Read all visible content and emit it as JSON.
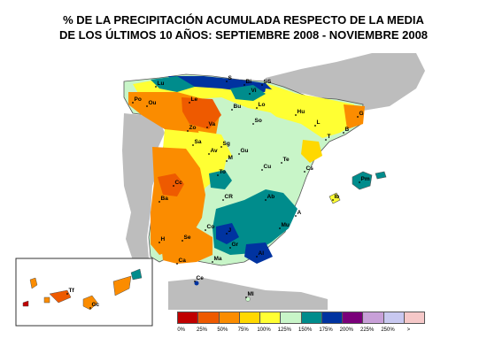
{
  "title": {
    "line1": "% DE LA PRECIPITACIÓN ACUMULADA RESPECTO DE LA MEDIA",
    "line2": "DE LOS  ÚLTIMOS 10  AÑOS: SEPTIEMBRE 2008 - NOVIEMBRE 2008"
  },
  "legend": {
    "colors": [
      "#c00000",
      "#ee5a00",
      "#fb8c00",
      "#ffd800",
      "#ffff33",
      "#c8f5c8",
      "#008c8c",
      "#0033a0",
      "#7a007a",
      "#c8a0d8",
      "#c8c8f0",
      "#f5c8c8"
    ],
    "ticks": [
      "0%",
      "25%",
      "50%",
      "75%",
      "100%",
      "125%",
      "150%",
      "175%",
      "200%",
      "225%",
      "250%",
      ">"
    ]
  },
  "colors": {
    "land_out": "#bdbdbd",
    "sea": "#ffffff",
    "border": "#555555"
  },
  "cities": [
    {
      "code": "S"
    },
    {
      "code": "Bi"
    },
    {
      "code": "SS"
    },
    {
      "code": "Vi"
    },
    {
      "code": "Lu"
    },
    {
      "code": "Po"
    },
    {
      "code": "Ou"
    },
    {
      "code": "Le"
    },
    {
      "code": "Bu"
    },
    {
      "code": "Lo"
    },
    {
      "code": "Hu"
    },
    {
      "code": "G"
    },
    {
      "code": "B"
    },
    {
      "code": "L"
    },
    {
      "code": "T"
    },
    {
      "code": "So"
    },
    {
      "code": "Zo"
    },
    {
      "code": "Va"
    },
    {
      "code": "Sa"
    },
    {
      "code": "Sg"
    },
    {
      "code": "Av"
    },
    {
      "code": "Gu"
    },
    {
      "code": "M"
    },
    {
      "code": "Cu"
    },
    {
      "code": "Te"
    },
    {
      "code": "Cs"
    },
    {
      "code": "Cc"
    },
    {
      "code": "To"
    },
    {
      "code": "CR"
    },
    {
      "code": "Ab"
    },
    {
      "code": "Ba"
    },
    {
      "code": "Co"
    },
    {
      "code": "J"
    },
    {
      "code": "Mu"
    },
    {
      "code": "A"
    },
    {
      "code": "H"
    },
    {
      "code": "Se"
    },
    {
      "code": "Gr"
    },
    {
      "code": "Ma"
    },
    {
      "code": "Al"
    },
    {
      "code": "Ca"
    },
    {
      "code": "Ce"
    },
    {
      "code": "Ml"
    },
    {
      "code": "Ib"
    },
    {
      "code": "Pm"
    },
    {
      "code": "Tf"
    },
    {
      "code": "Gc"
    }
  ]
}
